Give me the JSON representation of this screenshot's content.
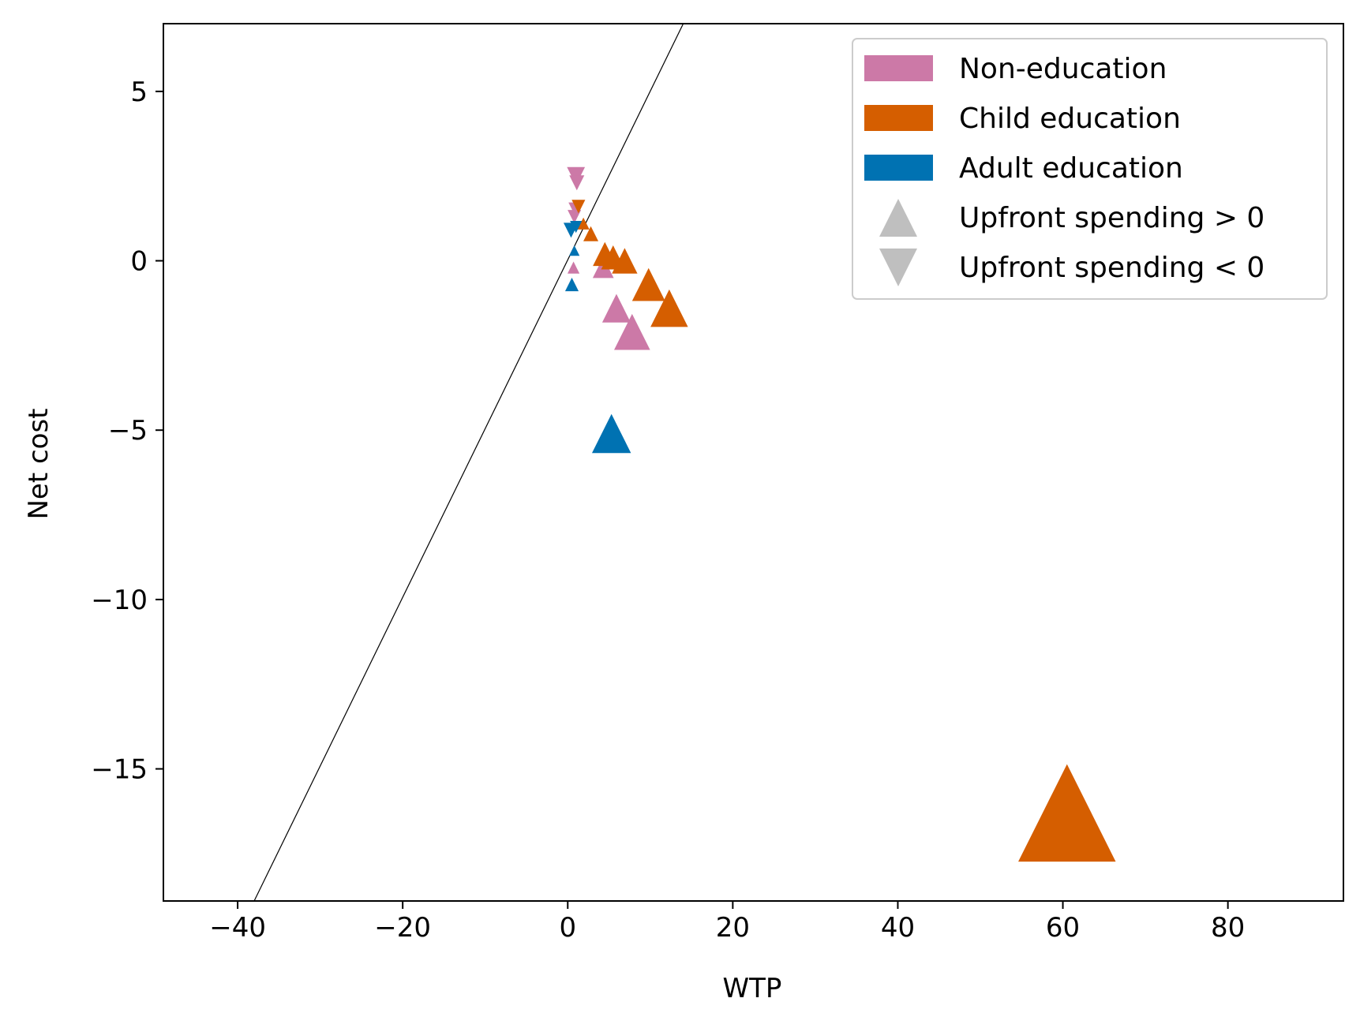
{
  "chart_data": {
    "type": "scatter",
    "title": "",
    "xlabel": "WTP",
    "ylabel": "Net cost",
    "xlim": [
      -49,
      94
    ],
    "ylim": [
      -18.9,
      7
    ],
    "x_ticks": [
      -40,
      -20,
      0,
      20,
      40,
      60,
      80
    ],
    "y_ticks": [
      5,
      0,
      -5,
      -10,
      -15
    ],
    "x_tick_labels": [
      "−40",
      "−20",
      "0",
      "20",
      "40",
      "60",
      "80"
    ],
    "y_tick_labels": [
      "5",
      "0",
      "−5",
      "−10",
      "−15"
    ],
    "grid": false,
    "legend_position": "top-right",
    "reference_line": {
      "color": "#000000",
      "points": [
        [
          -38,
          -18.9
        ],
        [
          14,
          7
        ]
      ]
    },
    "legend": {
      "categories": [
        {
          "name": "Non-education",
          "color": "#cc79a7"
        },
        {
          "name": "Child education",
          "color": "#d55e00"
        },
        {
          "name": "Adult education",
          "color": "#0072b2"
        }
      ],
      "markers": [
        {
          "name": "Upfront spending > 0",
          "marker": "triangle-up",
          "color": "#bfbfbf"
        },
        {
          "name": "Upfront spending < 0",
          "marker": "triangle-down",
          "color": "#bfbfbf"
        }
      ]
    },
    "series": [
      {
        "name": "Non-education",
        "color": "#cc79a7",
        "points": [
          {
            "x": 1.0,
            "y": 2.5,
            "marker": "triangle-down",
            "size": 1.2
          },
          {
            "x": 1.1,
            "y": 2.3,
            "marker": "triangle-down",
            "size": 1.0
          },
          {
            "x": 1.0,
            "y": 1.5,
            "marker": "triangle-down",
            "size": 1.0
          },
          {
            "x": 0.8,
            "y": 1.3,
            "marker": "triangle-down",
            "size": 0.9
          },
          {
            "x": 0.7,
            "y": -0.2,
            "marker": "triangle-up",
            "size": 0.8
          },
          {
            "x": 4.3,
            "y": -0.2,
            "marker": "triangle-up",
            "size": 1.4
          },
          {
            "x": 5.9,
            "y": -1.4,
            "marker": "triangle-up",
            "size": 1.9
          },
          {
            "x": 7.8,
            "y": -2.1,
            "marker": "triangle-up",
            "size": 2.4
          }
        ]
      },
      {
        "name": "Child education",
        "color": "#d55e00",
        "points": [
          {
            "x": 60.5,
            "y": -16.3,
            "marker": "triangle-up",
            "size": 6.5
          },
          {
            "x": 12.3,
            "y": -1.4,
            "marker": "triangle-up",
            "size": 2.5
          },
          {
            "x": 9.8,
            "y": -0.7,
            "marker": "triangle-up",
            "size": 2.2
          },
          {
            "x": 6.9,
            "y": 0.0,
            "marker": "triangle-up",
            "size": 1.7
          },
          {
            "x": 5.5,
            "y": 0.1,
            "marker": "triangle-up",
            "size": 1.6
          },
          {
            "x": 4.5,
            "y": 0.2,
            "marker": "triangle-up",
            "size": 1.6
          },
          {
            "x": 2.8,
            "y": 0.8,
            "marker": "triangle-up",
            "size": 1.0
          },
          {
            "x": 1.9,
            "y": 1.1,
            "marker": "triangle-up",
            "size": 0.8
          },
          {
            "x": 1.3,
            "y": 1.6,
            "marker": "triangle-down",
            "size": 0.9
          }
        ]
      },
      {
        "name": "Adult education",
        "color": "#0072b2",
        "points": [
          {
            "x": 5.3,
            "y": -5.1,
            "marker": "triangle-up",
            "size": 2.6
          },
          {
            "x": 0.4,
            "y": 0.9,
            "marker": "triangle-down",
            "size": 1.0
          },
          {
            "x": 1.0,
            "y": 1.0,
            "marker": "triangle-down",
            "size": 0.8
          },
          {
            "x": 0.8,
            "y": 0.3,
            "marker": "triangle-up",
            "size": 0.7
          },
          {
            "x": 0.5,
            "y": -0.7,
            "marker": "triangle-up",
            "size": 0.9
          }
        ]
      }
    ]
  }
}
